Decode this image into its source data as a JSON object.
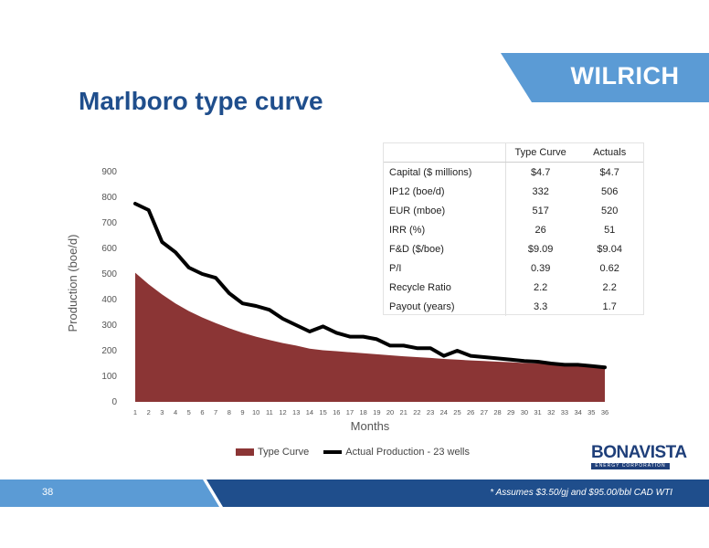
{
  "header": {
    "brand": "WILRICH",
    "title": "Marlboro type curve"
  },
  "colors": {
    "accent_blue": "#1f4e8c",
    "banner_blue": "#5b9bd5",
    "type_curve_fill": "#8b3535",
    "actual_line": "#000000",
    "footer_dark": "#1f4e8c"
  },
  "chart_data": {
    "type": "area",
    "xlabel": "Months",
    "ylabel": "Production (boe/d)",
    "ylim": [
      0,
      900
    ],
    "yticks": [
      0,
      100,
      200,
      300,
      400,
      500,
      600,
      700,
      800,
      900
    ],
    "x": [
      1,
      2,
      3,
      4,
      5,
      6,
      7,
      8,
      9,
      10,
      11,
      12,
      13,
      14,
      15,
      16,
      17,
      18,
      19,
      20,
      21,
      22,
      23,
      24,
      25,
      26,
      27,
      28,
      29,
      30,
      31,
      32,
      33,
      34,
      35,
      36
    ],
    "series": [
      {
        "name": "Type Curve",
        "kind": "area",
        "values": [
          505,
          460,
          420,
          385,
          355,
          330,
          308,
          288,
          270,
          255,
          242,
          230,
          220,
          208,
          202,
          198,
          194,
          190,
          186,
          182,
          178,
          175,
          172,
          168,
          165,
          162,
          160,
          157,
          155,
          152,
          150,
          148,
          146,
          144,
          142,
          140
        ]
      },
      {
        "name": "Actual Production - 23 wells",
        "kind": "line",
        "values": [
          775,
          750,
          625,
          585,
          525,
          500,
          485,
          425,
          385,
          375,
          360,
          325,
          300,
          275,
          295,
          270,
          255,
          255,
          245,
          220,
          220,
          210,
          210,
          180,
          200,
          180,
          175,
          170,
          165,
          160,
          157,
          150,
          145,
          145,
          140,
          135
        ]
      }
    ],
    "legend_position": "bottom",
    "grid": false
  },
  "metrics_table": {
    "columns": [
      "",
      "Type Curve",
      "Actuals"
    ],
    "rows": [
      [
        "Capital ($ millions)",
        "$4.7",
        "$4.7"
      ],
      [
        "IP12 (boe/d)",
        "332",
        "506"
      ],
      [
        "EUR (mboe)",
        "517",
        "520"
      ],
      [
        "IRR (%)",
        "26",
        "51"
      ],
      [
        "F&D ($/boe)",
        "$9.09",
        "$9.04"
      ],
      [
        "P/I",
        "0.39",
        "0.62"
      ],
      [
        "Recycle Ratio",
        "2.2",
        "2.2"
      ],
      [
        "Payout (years)",
        "3.3",
        "1.7"
      ]
    ]
  },
  "logo": {
    "name": "BONAVISTA",
    "subtitle": "ENERGY CORPORATION"
  },
  "footer": {
    "page_number": "38",
    "footnote": "* Assumes $3.50/gj and $95.00/bbl CAD WTI"
  }
}
